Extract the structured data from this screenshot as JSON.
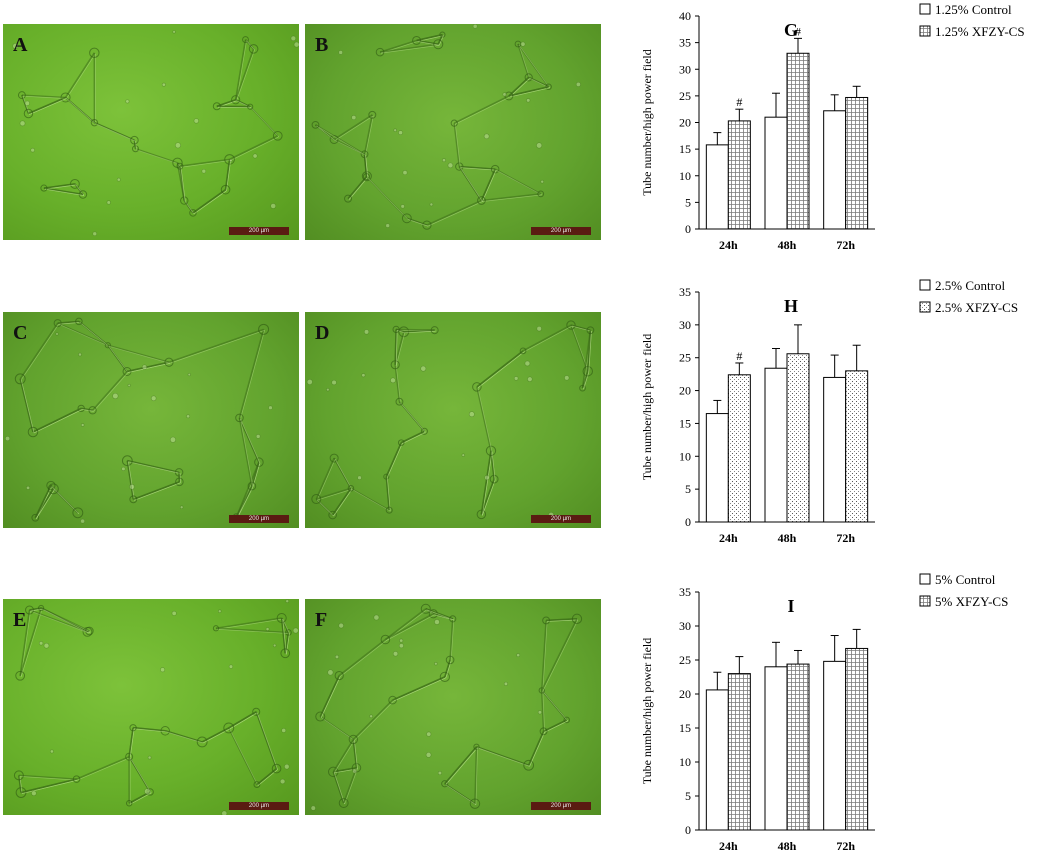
{
  "micrographs": [
    {
      "letter": "A",
      "scale_label": "200 µm"
    },
    {
      "letter": "B",
      "scale_label": "200 µm"
    },
    {
      "letter": "C",
      "scale_label": "200 µm"
    },
    {
      "letter": "D",
      "scale_label": "200 µm"
    },
    {
      "letter": "E",
      "scale_label": "200 µm"
    },
    {
      "letter": "F",
      "scale_label": "200 µm"
    }
  ],
  "chart_data": [
    {
      "type": "bar",
      "panel_letter": "G",
      "categories": [
        "24h",
        "48h",
        "72h"
      ],
      "ylabel": "Tube number/high power field",
      "ylim": [
        0,
        40
      ],
      "yticks": [
        0,
        5,
        10,
        15,
        20,
        25,
        30,
        35,
        40
      ],
      "legend_position": "top-right",
      "grid": false,
      "series": [
        {
          "name": "1.25% Control",
          "values": [
            15.8,
            21.0,
            22.2
          ],
          "errors": [
            2.3,
            4.5,
            3.0
          ],
          "pattern": "plain"
        },
        {
          "name": "1.25% XFZY-CS",
          "values": [
            20.3,
            33.0,
            24.7
          ],
          "errors": [
            2.2,
            2.8,
            2.1
          ],
          "pattern": "grid"
        }
      ],
      "annotations": [
        {
          "series": 1,
          "category": "24h",
          "text": "#"
        },
        {
          "series": 1,
          "category": "48h",
          "text": "#"
        }
      ]
    },
    {
      "type": "bar",
      "panel_letter": "H",
      "categories": [
        "24h",
        "48h",
        "72h"
      ],
      "ylabel": "Tube number/high power field",
      "ylim": [
        0,
        35
      ],
      "yticks": [
        0,
        5,
        10,
        15,
        20,
        25,
        30,
        35
      ],
      "legend_position": "top-right",
      "grid": false,
      "series": [
        {
          "name": "2.5% Control",
          "values": [
            16.5,
            23.4,
            22.0
          ],
          "errors": [
            2.0,
            3.0,
            3.4
          ],
          "pattern": "plain"
        },
        {
          "name": "2.5% XFZY-CS",
          "values": [
            22.4,
            25.6,
            23.0
          ],
          "errors": [
            1.8,
            4.4,
            3.9
          ],
          "pattern": "dots"
        }
      ],
      "annotations": [
        {
          "series": 1,
          "category": "24h",
          "text": "#"
        }
      ]
    },
    {
      "type": "bar",
      "panel_letter": "I",
      "categories": [
        "24h",
        "48h",
        "72h"
      ],
      "ylabel": "Tube number/high power field",
      "ylim": [
        0,
        35
      ],
      "yticks": [
        0,
        5,
        10,
        15,
        20,
        25,
        30,
        35
      ],
      "legend_position": "top-right",
      "grid": false,
      "series": [
        {
          "name": "5% Control",
          "values": [
            20.6,
            24.0,
            24.8
          ],
          "errors": [
            2.6,
            3.6,
            3.8
          ],
          "pattern": "plain"
        },
        {
          "name": "5% XFZY-CS",
          "values": [
            23.0,
            24.4,
            26.7
          ],
          "errors": [
            2.5,
            2.0,
            2.8
          ],
          "pattern": "grid"
        }
      ],
      "annotations": []
    }
  ]
}
